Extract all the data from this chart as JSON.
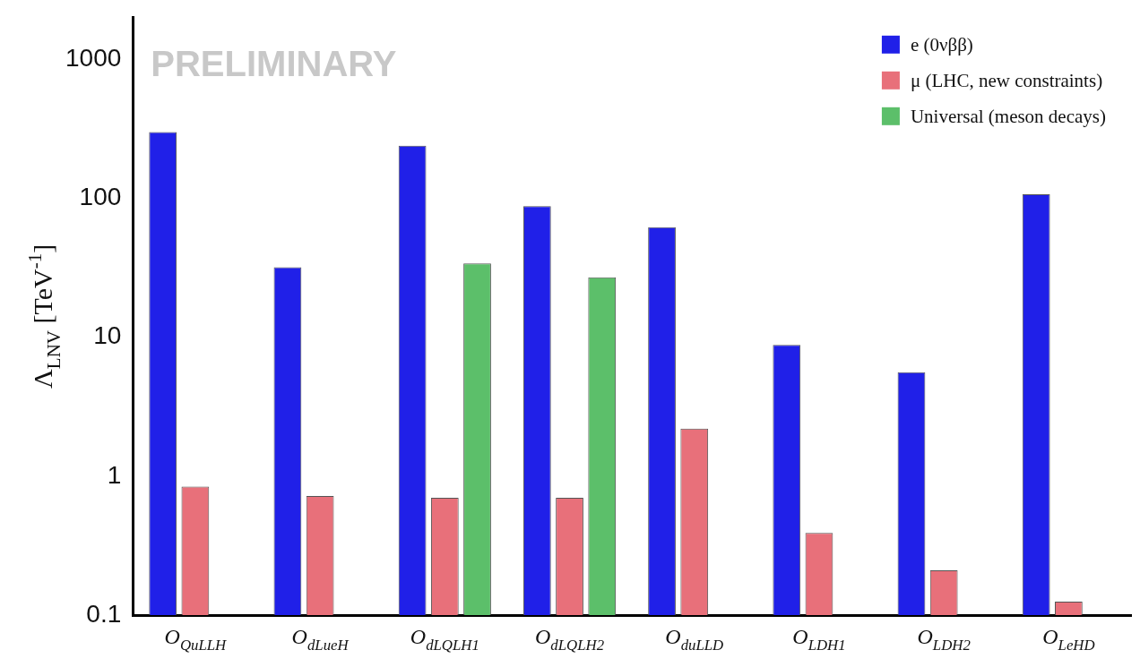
{
  "chart_data": {
    "type": "bar",
    "categories": [
      "O$_{QuLLH}$",
      "O$_{dLueH}$",
      "O$_{dLQLH1}$",
      "O$_{dLQLH2}$",
      "O$_{duLLD}$",
      "O$_{LDH1}$",
      "O$_{LDH2}$",
      "O$_{LeHD}$"
    ],
    "ylabel": "Λ$_{LNV}$ [TeV$^{-1}$]",
    "series": [
      {
        "name": "e (0νββ)",
        "color": "#2020e8",
        "values": [
          300,
          32,
          240,
          88,
          62,
          8.8,
          5.6,
          107
        ]
      },
      {
        "name": "μ (LHC, new constraints)",
        "color": "#e8707a",
        "values": [
          0.84,
          0.72,
          0.7,
          0.7,
          2.2,
          0.39,
          0.21,
          0.125
        ]
      },
      {
        "name": "Universal (meson decays)",
        "color": "#5cbf6a",
        "values": [
          null,
          null,
          34,
          27,
          null,
          null,
          null,
          null
        ]
      }
    ],
    "log": "y",
    "ylim": [
      0.1,
      2000
    ],
    "yticks": [
      0.1,
      1,
      10,
      100,
      1000
    ],
    "grid": false,
    "legend": "top right",
    "annotations": [
      "PRELIMINARY"
    ]
  }
}
